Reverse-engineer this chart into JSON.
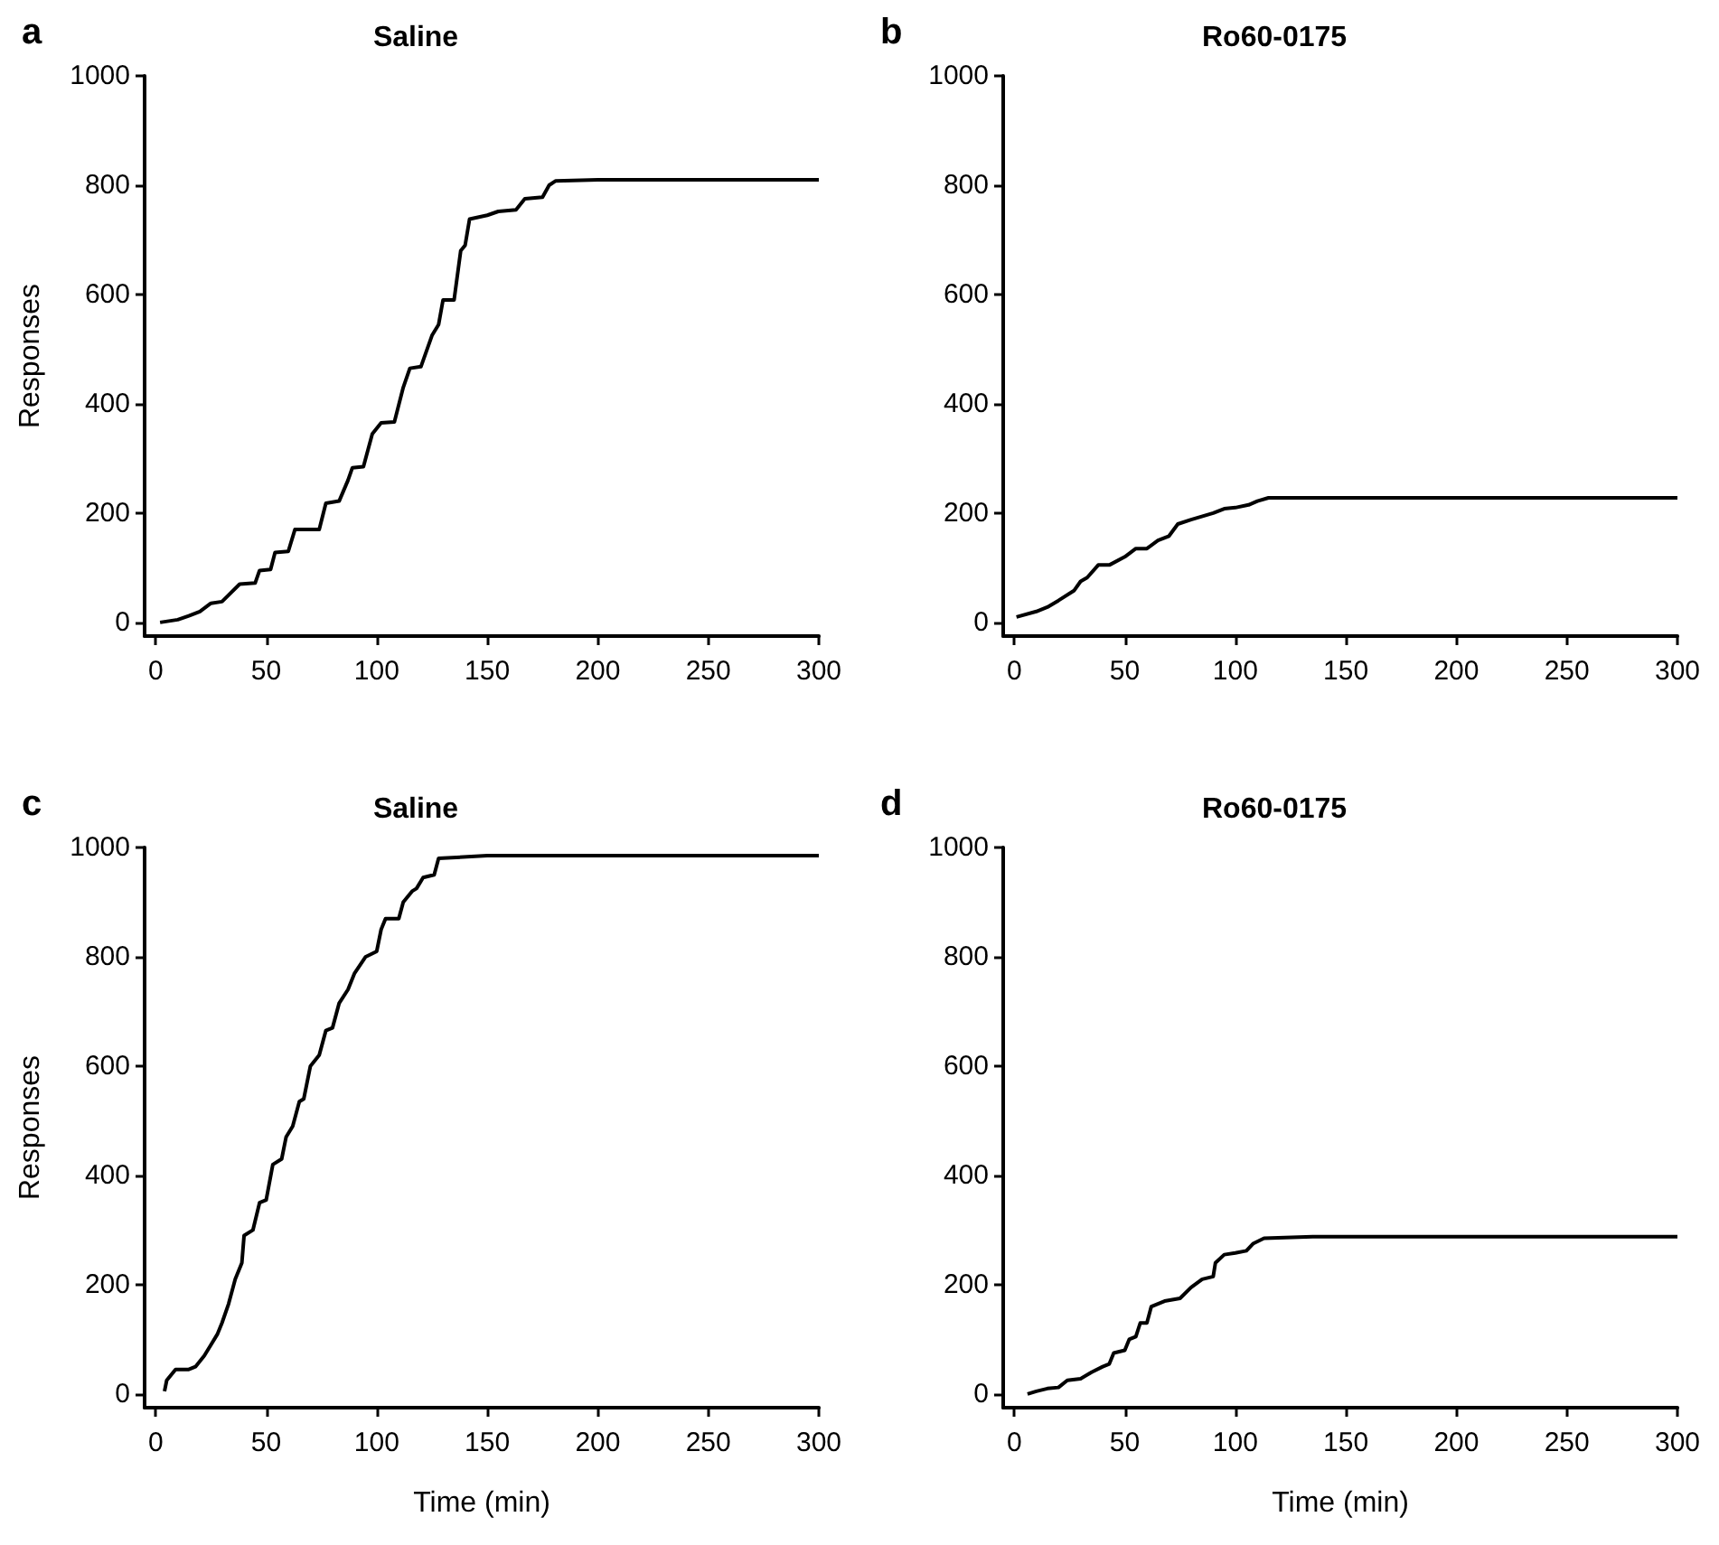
{
  "chart_data": [
    {
      "type": "line",
      "title": "Saline",
      "ylabel": "Responses",
      "annotations": [
        "a"
      ],
      "xlim": [
        -5,
        300
      ],
      "xticks": [
        0,
        50,
        100,
        150,
        200,
        250,
        300
      ],
      "ylim": [
        -25,
        1000
      ],
      "yticks": [
        0,
        200,
        400,
        600,
        800,
        1000
      ],
      "grid": false,
      "marker": "none",
      "line_style": "solid",
      "series": [
        {
          "color": "#000000",
          "x": [
            2,
            10,
            15,
            20,
            25,
            30,
            33,
            38,
            45,
            47,
            52,
            54,
            60,
            63,
            74,
            77,
            83,
            87,
            89,
            94,
            98,
            102,
            108,
            112,
            115,
            120,
            125,
            128,
            130,
            135,
            138,
            140,
            142,
            150,
            155,
            163,
            167,
            175,
            178,
            181,
            200,
            300
          ],
          "values": [
            0,
            5,
            12,
            20,
            35,
            38,
            50,
            70,
            72,
            95,
            97,
            128,
            130,
            170,
            170,
            218,
            222,
            260,
            283,
            285,
            345,
            365,
            367,
            430,
            465,
            468,
            525,
            545,
            590,
            590,
            680,
            690,
            738,
            745,
            752,
            755,
            775,
            778,
            800,
            808,
            810,
            810
          ]
        }
      ]
    },
    {
      "type": "line",
      "title": "Ro60-0175",
      "annotations": [
        "b"
      ],
      "xlim": [
        -5,
        300
      ],
      "xticks": [
        0,
        50,
        100,
        150,
        200,
        250,
        300
      ],
      "ylim": [
        -25,
        1000
      ],
      "yticks": [
        0,
        200,
        400,
        600,
        800,
        1000
      ],
      "grid": false,
      "marker": "none",
      "line_style": "solid",
      "series": [
        {
          "color": "#000000",
          "x": [
            1,
            10,
            15,
            20,
            27,
            30,
            33,
            38,
            43,
            50,
            55,
            60,
            65,
            70,
            74,
            80,
            90,
            95,
            100,
            106,
            110,
            115,
            300
          ],
          "values": [
            10,
            20,
            28,
            40,
            58,
            75,
            82,
            105,
            105,
            120,
            135,
            135,
            150,
            158,
            180,
            188,
            200,
            208,
            210,
            215,
            222,
            228,
            228
          ]
        }
      ]
    },
    {
      "type": "line",
      "title": "Saline",
      "xlabel": "Time (min)",
      "ylabel": "Responses",
      "annotations": [
        "c"
      ],
      "xlim": [
        -5,
        300
      ],
      "xticks": [
        0,
        50,
        100,
        150,
        200,
        250,
        300
      ],
      "ylim": [
        -25,
        1000
      ],
      "yticks": [
        0,
        200,
        400,
        600,
        800,
        1000
      ],
      "grid": false,
      "marker": "none",
      "line_style": "solid",
      "series": [
        {
          "color": "#000000",
          "x": [
            4,
            5,
            7,
            9,
            15,
            18,
            22,
            25,
            28,
            30,
            33,
            36,
            39,
            40,
            44,
            47,
            50,
            53,
            57,
            59,
            62,
            65,
            67,
            70,
            74,
            77,
            80,
            83,
            87,
            90,
            95,
            100,
            102,
            104,
            110,
            112,
            116,
            118,
            121,
            126,
            128,
            150,
            300
          ],
          "values": [
            5,
            25,
            35,
            45,
            45,
            50,
            70,
            90,
            110,
            130,
            165,
            210,
            240,
            290,
            300,
            350,
            355,
            420,
            430,
            470,
            490,
            535,
            540,
            600,
            620,
            665,
            670,
            715,
            740,
            770,
            800,
            810,
            850,
            870,
            870,
            900,
            920,
            925,
            945,
            950,
            980,
            985,
            985
          ]
        }
      ]
    },
    {
      "type": "line",
      "title": "Ro60-0175",
      "xlabel": "Time (min)",
      "annotations": [
        "d"
      ],
      "xlim": [
        -5,
        300
      ],
      "xticks": [
        0,
        50,
        100,
        150,
        200,
        250,
        300
      ],
      "ylim": [
        -25,
        1000
      ],
      "yticks": [
        0,
        200,
        400,
        600,
        800,
        1000
      ],
      "grid": false,
      "marker": "none",
      "line_style": "solid",
      "series": [
        {
          "color": "#000000",
          "x": [
            6,
            10,
            15,
            20,
            24,
            30,
            35,
            40,
            43,
            45,
            50,
            52,
            55,
            57,
            60,
            62,
            68,
            75,
            80,
            85,
            90,
            91,
            95,
            100,
            105,
            108,
            113,
            135,
            300
          ],
          "values": [
            0,
            5,
            10,
            12,
            25,
            28,
            40,
            50,
            55,
            75,
            80,
            100,
            105,
            130,
            130,
            160,
            170,
            175,
            195,
            210,
            215,
            240,
            255,
            258,
            262,
            275,
            285,
            288,
            288
          ]
        }
      ]
    }
  ]
}
